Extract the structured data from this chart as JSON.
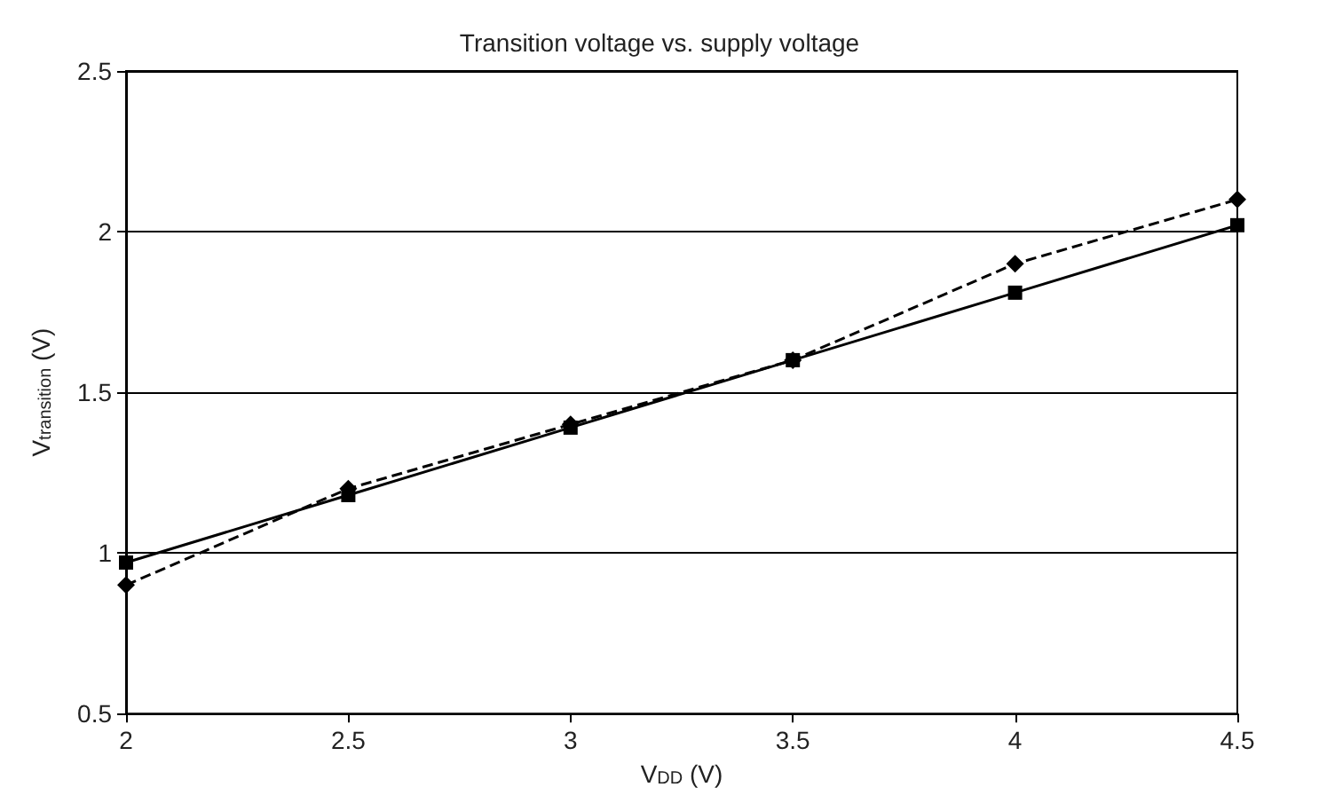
{
  "chart_data": {
    "type": "line",
    "title": "Transition voltage vs. supply voltage",
    "xlabel": "V$_{DD}$ (V)",
    "ylabel": "V$_{transition}$ (V)",
    "x": [
      2,
      2.5,
      3,
      3.5,
      4,
      4.5
    ],
    "series": [
      {
        "color": "#000000",
        "values": [
          0.97,
          1.18,
          1.39,
          1.6,
          1.81,
          2.02
        ],
        "marker": "square",
        "line_style": "solid"
      },
      {
        "color": "#000000",
        "values": [
          0.9,
          1.2,
          1.4,
          1.6,
          1.9,
          2.1
        ],
        "marker": "diamond",
        "line_style": "dashed"
      }
    ],
    "xlim": [
      2,
      4.5
    ],
    "xticks": [
      2,
      2.5,
      3,
      3.5,
      4,
      4.5
    ],
    "ylim": [
      0.5,
      2.5
    ],
    "yticks": [
      0.5,
      1,
      1.5,
      2,
      2.5
    ],
    "grid": "y",
    "legend": false
  }
}
